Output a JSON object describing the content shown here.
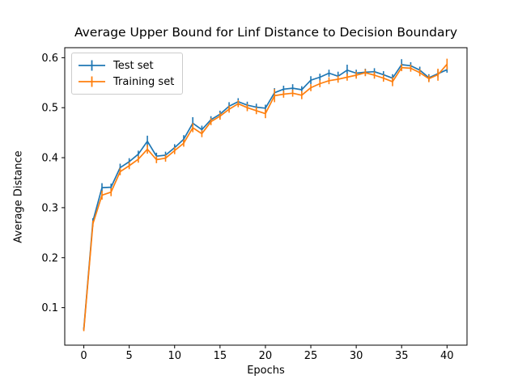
{
  "chart_data": {
    "type": "line",
    "title": "Average Upper Bound for Linf Distance to Decision Boundary",
    "xlabel": "Epochs",
    "ylabel": "Average Distance",
    "xlim": [
      -2.1,
      42.2
    ],
    "ylim": [
      0.025,
      0.62
    ],
    "xticks": [
      0,
      5,
      10,
      15,
      20,
      25,
      30,
      35,
      40
    ],
    "yticks": [
      0.1,
      0.2,
      0.3,
      0.4,
      0.5,
      0.6
    ],
    "grid": false,
    "legend_position": "upper-left",
    "x": [
      0,
      1,
      2,
      3,
      4,
      5,
      6,
      7,
      8,
      9,
      10,
      11,
      12,
      13,
      14,
      15,
      16,
      17,
      18,
      19,
      20,
      21,
      22,
      23,
      24,
      25,
      26,
      27,
      28,
      29,
      30,
      31,
      32,
      33,
      34,
      35,
      36,
      37,
      38,
      39,
      40
    ],
    "series": [
      {
        "name": "Test set",
        "color": "#1f77b4",
        "values": [
          0.058,
          0.273,
          0.34,
          0.341,
          0.38,
          0.392,
          0.407,
          0.433,
          0.403,
          0.405,
          0.42,
          0.437,
          0.469,
          0.456,
          0.476,
          0.487,
          0.503,
          0.512,
          0.505,
          0.501,
          0.499,
          0.53,
          0.537,
          0.539,
          0.536,
          0.555,
          0.561,
          0.569,
          0.563,
          0.575,
          0.569,
          0.571,
          0.572,
          0.566,
          0.559,
          0.586,
          0.584,
          0.575,
          0.56,
          0.568,
          0.576
        ],
        "err": [
          0.003,
          0.006,
          0.009,
          0.007,
          0.008,
          0.007,
          0.007,
          0.011,
          0.007,
          0.007,
          0.007,
          0.008,
          0.012,
          0.008,
          0.007,
          0.007,
          0.008,
          0.007,
          0.007,
          0.007,
          0.007,
          0.009,
          0.007,
          0.008,
          0.007,
          0.008,
          0.007,
          0.007,
          0.009,
          0.011,
          0.007,
          0.007,
          0.007,
          0.007,
          0.008,
          0.011,
          0.007,
          0.007,
          0.007,
          0.007,
          0.006
        ]
      },
      {
        "name": "Training set",
        "color": "#ff7f0e",
        "values": [
          0.056,
          0.268,
          0.325,
          0.331,
          0.372,
          0.384,
          0.397,
          0.417,
          0.396,
          0.399,
          0.414,
          0.429,
          0.46,
          0.448,
          0.472,
          0.483,
          0.497,
          0.508,
          0.5,
          0.494,
          0.488,
          0.524,
          0.527,
          0.529,
          0.525,
          0.54,
          0.548,
          0.554,
          0.557,
          0.561,
          0.565,
          0.57,
          0.565,
          0.559,
          0.552,
          0.58,
          0.579,
          0.57,
          0.558,
          0.566,
          0.587
        ],
        "err": [
          0.003,
          0.006,
          0.009,
          0.008,
          0.007,
          0.007,
          0.007,
          0.009,
          0.007,
          0.007,
          0.007,
          0.007,
          0.009,
          0.007,
          0.007,
          0.007,
          0.007,
          0.007,
          0.007,
          0.007,
          0.009,
          0.013,
          0.007,
          0.007,
          0.008,
          0.007,
          0.007,
          0.007,
          0.007,
          0.007,
          0.007,
          0.007,
          0.007,
          0.007,
          0.009,
          0.007,
          0.007,
          0.007,
          0.007,
          0.012,
          0.011
        ]
      }
    ]
  }
}
